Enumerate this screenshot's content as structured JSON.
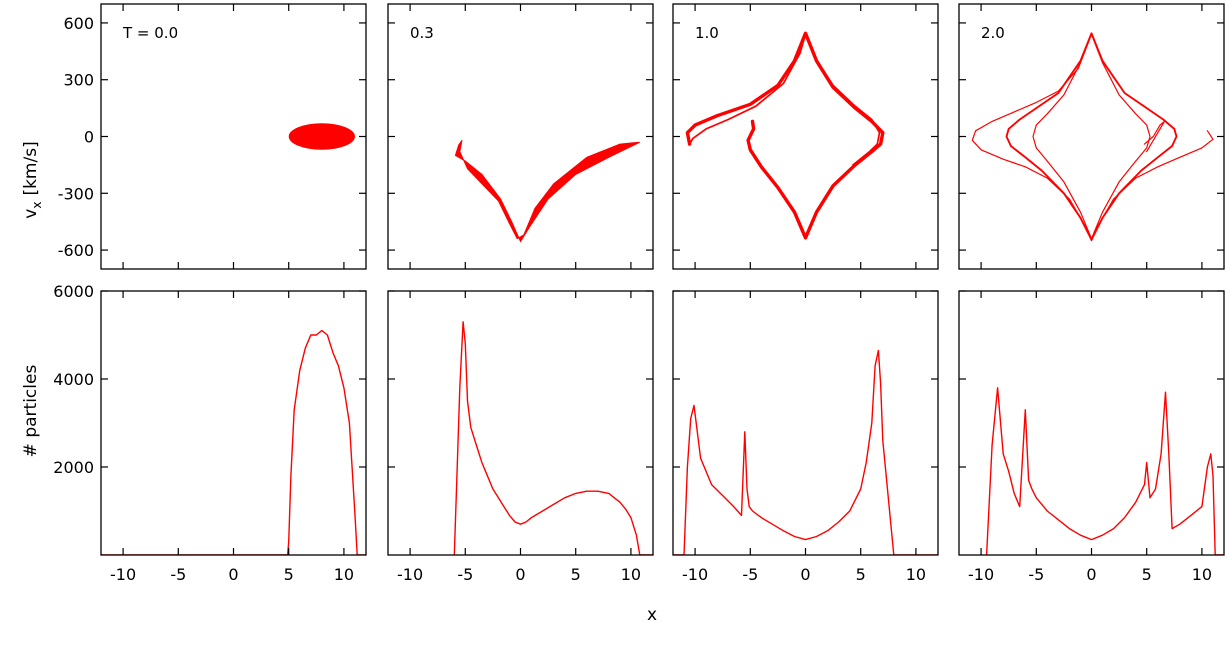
{
  "figure": {
    "xlabel": "x",
    "top_ylabel": "v",
    "top_ylabel_sub": "x",
    "top_ylabel_unit": "[km/s]",
    "bottom_ylabel": "# particles",
    "series_color": "#ff0000"
  },
  "chart_data": [
    {
      "type": "area",
      "panel_label": "T = 0.0",
      "xlabel": "",
      "ylabel": "v_x [km/s]",
      "xlim": [
        -12,
        12
      ],
      "ylim": [
        -700,
        700
      ],
      "xticks": [
        -10,
        -5,
        0,
        5,
        10
      ],
      "yticks": [
        -600,
        -300,
        0,
        300,
        600
      ],
      "shape": "ellipse",
      "center": [
        8,
        0
      ],
      "x_halfwidth": 3,
      "v_halfwidth": 70
    },
    {
      "type": "area",
      "panel_label": "0.3",
      "xlim": [
        -12,
        12
      ],
      "ylim": [
        -700,
        700
      ],
      "xticks": [
        -10,
        -5,
        0,
        5,
        10
      ],
      "yticks": [
        -600,
        -300,
        0,
        300,
        600
      ],
      "outline": [
        [
          -5.3,
          -20
        ],
        [
          -5.6,
          -45
        ],
        [
          -5.9,
          -100
        ],
        [
          -5.0,
          -130
        ],
        [
          -3.5,
          -200
        ],
        [
          -1.8,
          -330
        ],
        [
          -0.8,
          -450
        ],
        [
          0,
          -555
        ],
        [
          0.8,
          -480
        ],
        [
          2.5,
          -330
        ],
        [
          5,
          -200
        ],
        [
          8,
          -110
        ],
        [
          10.8,
          -30
        ],
        [
          9,
          -40
        ],
        [
          6,
          -110
        ],
        [
          3,
          -250
        ],
        [
          1.3,
          -380
        ],
        [
          0.3,
          -520
        ],
        [
          -0.3,
          -540
        ],
        [
          -1,
          -460
        ],
        [
          -2,
          -340
        ],
        [
          -3.5,
          -250
        ],
        [
          -4.8,
          -170
        ],
        [
          -5.5,
          -80
        ],
        [
          -5.3,
          -20
        ]
      ]
    },
    {
      "type": "line",
      "panel_label": "1.0",
      "xlim": [
        -12,
        12
      ],
      "ylim": [
        -700,
        700
      ],
      "xticks": [
        -10,
        -5,
        0,
        5,
        10
      ],
      "yticks": [
        -600,
        -300,
        0,
        300,
        600
      ],
      "band_width": 18,
      "curves": [
        [
          [
            -10.5,
            -40
          ],
          [
            -10.7,
            20
          ],
          [
            -10,
            60
          ],
          [
            -8,
            110
          ],
          [
            -5,
            170
          ],
          [
            -2.5,
            270
          ],
          [
            -1,
            400
          ],
          [
            0,
            545
          ],
          [
            1,
            400
          ],
          [
            2.5,
            260
          ],
          [
            4.5,
            150
          ],
          [
            6,
            80
          ],
          [
            7,
            20
          ],
          [
            6.8,
            -40
          ],
          [
            6,
            -80
          ],
          [
            4.5,
            -150
          ],
          [
            2.5,
            -260
          ],
          [
            1,
            -400
          ],
          [
            0,
            -535
          ],
          [
            -1,
            -400
          ],
          [
            -2.5,
            -270
          ],
          [
            -4,
            -160
          ],
          [
            -5,
            -70
          ],
          [
            -5.2,
            -20
          ],
          [
            -4.7,
            40
          ],
          [
            -4.8,
            80
          ]
        ],
        [
          [
            -10.5,
            -40
          ],
          [
            -10.2,
            -10
          ],
          [
            -9,
            40
          ],
          [
            -7,
            90
          ],
          [
            -4.5,
            160
          ],
          [
            -2,
            280
          ],
          [
            -0.5,
            440
          ],
          [
            0,
            540
          ],
          [
            0.8,
            420
          ],
          [
            2.5,
            270
          ],
          [
            4.5,
            160
          ],
          [
            6,
            90
          ],
          [
            6.7,
            20
          ],
          [
            6.5,
            -40
          ],
          [
            5.8,
            -80
          ],
          [
            4.3,
            -150
          ]
        ]
      ]
    },
    {
      "type": "line",
      "panel_label": "2.0",
      "xlim": [
        -12,
        12
      ],
      "ylim": [
        -700,
        700
      ],
      "xticks": [
        -10,
        -5,
        0,
        5,
        10
      ],
      "yticks": [
        -600,
        -300,
        0,
        300,
        600
      ],
      "band_width": 10,
      "curves": [
        [
          [
            0,
            545
          ],
          [
            -1,
            400
          ],
          [
            -3,
            230
          ],
          [
            -5,
            150
          ],
          [
            -6.5,
            90
          ],
          [
            -7.5,
            40
          ],
          [
            -7.7,
            0
          ],
          [
            -7.3,
            -50
          ],
          [
            -6,
            -110
          ],
          [
            -4.5,
            -180
          ],
          [
            -2.5,
            -300
          ],
          [
            -1,
            -430
          ],
          [
            0,
            -545
          ],
          [
            1,
            -430
          ],
          [
            2.5,
            -300
          ],
          [
            4.5,
            -180
          ],
          [
            6,
            -110
          ],
          [
            7.3,
            -50
          ],
          [
            7.7,
            0
          ],
          [
            7.5,
            40
          ],
          [
            6.5,
            90
          ],
          [
            5,
            150
          ],
          [
            3,
            230
          ],
          [
            1,
            400
          ],
          [
            0,
            545
          ]
        ],
        [
          [
            0,
            540
          ],
          [
            -1,
            390
          ],
          [
            -2.5,
            220
          ],
          [
            -4,
            120
          ],
          [
            -5,
            60
          ],
          [
            -5.3,
            0
          ],
          [
            -5,
            -60
          ],
          [
            -4,
            -130
          ],
          [
            -2.5,
            -240
          ],
          [
            -1,
            -400
          ],
          [
            0,
            -540
          ],
          [
            1,
            -400
          ],
          [
            2.5,
            -240
          ],
          [
            4,
            -130
          ],
          [
            5,
            -60
          ],
          [
            5.3,
            0
          ],
          [
            5,
            60
          ],
          [
            4,
            120
          ],
          [
            2.5,
            220
          ],
          [
            1,
            390
          ],
          [
            0,
            540
          ]
        ],
        [
          [
            0,
            545
          ],
          [
            -1.2,
            360
          ],
          [
            -3,
            240
          ],
          [
            -5,
            180
          ],
          [
            -7,
            130
          ],
          [
            -9,
            80
          ],
          [
            -10.5,
            30
          ],
          [
            -10.8,
            -20
          ],
          [
            -10,
            -70
          ],
          [
            -8,
            -120
          ],
          [
            -6,
            -160
          ],
          [
            -4,
            -220
          ],
          [
            -2,
            -330
          ],
          [
            -0.5,
            -480
          ],
          [
            0,
            -550
          ],
          [
            0.5,
            -480
          ],
          [
            2,
            -330
          ],
          [
            4,
            -220
          ],
          [
            6,
            -160
          ],
          [
            8,
            -110
          ],
          [
            10,
            -60
          ],
          [
            11,
            -15
          ],
          [
            10.5,
            30
          ]
        ],
        [
          [
            4.8,
            -40
          ],
          [
            5.6,
            0
          ],
          [
            6.2,
            60
          ],
          [
            6.6,
            80
          ],
          [
            6,
            20
          ],
          [
            5,
            -80
          ]
        ]
      ]
    },
    {
      "type": "line",
      "panel_label": "",
      "xlabel": "",
      "ylabel": "# particles",
      "xlim": [
        -12,
        12
      ],
      "ylim": [
        0,
        6000
      ],
      "xticks": [
        -10,
        -5,
        0,
        5,
        10
      ],
      "yticks": [
        2000,
        4000,
        6000
      ],
      "x": [
        -12,
        4.9,
        5.0,
        5.2,
        5.5,
        6.0,
        6.5,
        7.0,
        7.5,
        8.0,
        8.5,
        9.0,
        9.5,
        10.0,
        10.5,
        11.0,
        11.2,
        12
      ],
      "values": [
        0,
        0,
        300,
        1800,
        3300,
        4200,
        4700,
        5000,
        5000,
        5100,
        5000,
        4600,
        4300,
        3800,
        3000,
        900,
        0,
        0
      ]
    },
    {
      "type": "line",
      "panel_label": "",
      "xlim": [
        -12,
        12
      ],
      "ylim": [
        0,
        6000
      ],
      "xticks": [
        -10,
        -5,
        0,
        5,
        10
      ],
      "yticks": [
        2000,
        4000,
        6000
      ],
      "x": [
        -6,
        -5.8,
        -5.5,
        -5.2,
        -5.0,
        -4.8,
        -4.5,
        -4.0,
        -3.5,
        -3.0,
        -2.5,
        -2.0,
        -1.5,
        -1.0,
        -0.5,
        0,
        0.5,
        1,
        2,
        3,
        4,
        5,
        6,
        7,
        8,
        9,
        9.5,
        10,
        10.5,
        10.8,
        12
      ],
      "values": [
        0,
        1500,
        3800,
        5300,
        4800,
        3500,
        2900,
        2500,
        2100,
        1800,
        1500,
        1300,
        1100,
        900,
        750,
        700,
        750,
        850,
        1000,
        1150,
        1300,
        1400,
        1450,
        1450,
        1400,
        1200,
        1050,
        850,
        450,
        0,
        0
      ]
    },
    {
      "type": "line",
      "panel_label": "",
      "xlim": [
        -12,
        12
      ],
      "ylim": [
        0,
        6000
      ],
      "xticks": [
        -10,
        -5,
        0,
        5,
        10
      ],
      "yticks": [
        2000,
        4000,
        6000
      ],
      "x": [
        -12,
        -11.0,
        -10.7,
        -10.4,
        -10.1,
        -9.5,
        -8.5,
        -7.5,
        -6.5,
        -5.8,
        -5.5,
        -5.3,
        -5.1,
        -4.8,
        -4.0,
        -3.0,
        -2.0,
        -1.0,
        0,
        1,
        2,
        3,
        4,
        5,
        5.5,
        6,
        6.3,
        6.6,
        6.8,
        7.0,
        7.5,
        8.0,
        8.3,
        12
      ],
      "values": [
        0,
        0,
        2000,
        3100,
        3400,
        2200,
        1600,
        1350,
        1100,
        900,
        2800,
        1500,
        1100,
        1000,
        850,
        700,
        550,
        420,
        350,
        420,
        550,
        750,
        1000,
        1500,
        2100,
        3000,
        4300,
        4650,
        3900,
        2600,
        1300,
        0,
        0,
        0
      ]
    },
    {
      "type": "line",
      "panel_label": "",
      "xlim": [
        -12,
        12
      ],
      "ylim": [
        0,
        6000
      ],
      "xticks": [
        -10,
        -5,
        0,
        5,
        10
      ],
      "yticks": [
        2000,
        4000,
        6000
      ],
      "x": [
        -9.5,
        -9.0,
        -8.5,
        -8.0,
        -7.5,
        -7.0,
        -6.5,
        -6.0,
        -5.7,
        -5.4,
        -5.0,
        -4.0,
        -3.0,
        -2.0,
        -1.0,
        0,
        1,
        2,
        3,
        4,
        4.8,
        5.0,
        5.3,
        5.8,
        6.3,
        6.7,
        7.0,
        7.3,
        8.0,
        9.0,
        10.0,
        10.5,
        10.8,
        11.0,
        11.2,
        12
      ],
      "values": [
        0,
        2500,
        3800,
        2300,
        1900,
        1400,
        1100,
        3300,
        1700,
        1500,
        1300,
        1000,
        800,
        600,
        450,
        350,
        450,
        600,
        850,
        1200,
        1600,
        2100,
        1300,
        1500,
        2300,
        3700,
        2300,
        600,
        700,
        900,
        1100,
        2000,
        2300,
        1800,
        0,
        0
      ]
    }
  ]
}
